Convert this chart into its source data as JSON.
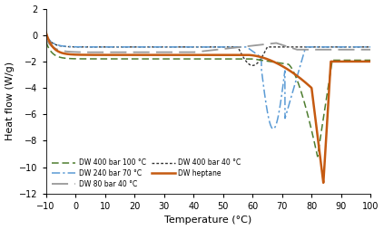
{
  "title": "",
  "xlabel": "Temperature (°C)",
  "ylabel": "Heat flow (W/g)",
  "xlim": [
    -10,
    100
  ],
  "ylim": [
    -12,
    2
  ],
  "xticks": [
    -10,
    0,
    10,
    20,
    30,
    40,
    50,
    60,
    70,
    80,
    90,
    100
  ],
  "yticks": [
    2,
    0,
    -2,
    -4,
    -6,
    -8,
    -10,
    -12
  ],
  "series": {
    "dw400_100": {
      "label": "DW 400 bar 100 °C",
      "color": "#4e7d2f",
      "linewidth": 1.1
    },
    "dw80_40": {
      "label": "DW 80 bar 40 °C",
      "color": "#999999",
      "linewidth": 1.3
    },
    "dw240_70": {
      "label": "DW 240 bar 70 °C",
      "color": "#5b9bd5",
      "linewidth": 1.1
    },
    "dw400_40": {
      "label": "DW 400 bar 40 °C",
      "color": "#333333",
      "linewidth": 1.0
    },
    "dw_heptane": {
      "label": "DW heptane",
      "color": "#c55a11",
      "linewidth": 1.8
    }
  },
  "background_color": "#ffffff"
}
